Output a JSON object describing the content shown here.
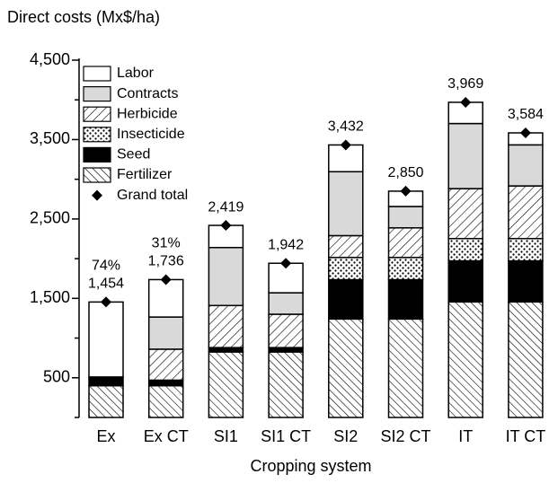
{
  "chart_data": {
    "type": "stacked_bar",
    "title": "Direct costs (Mx$/ha)",
    "x_label": "Cropping system",
    "categories": [
      "Ex",
      "Ex CT",
      "SI1",
      "SI1 CT",
      "SI2",
      "SI2 CT",
      "IT",
      "IT CT"
    ],
    "series": [
      {
        "name": "Fertilizer",
        "color": "#000000",
        "pattern": "hatch-back",
        "values": [
          400,
          400,
          825,
          825,
          1240,
          1240,
          1455,
          1455
        ]
      },
      {
        "name": "Seed",
        "color": "#000000",
        "pattern": "solid",
        "values": [
          110,
          70,
          55,
          55,
          495,
          495,
          517,
          517
        ]
      },
      {
        "name": "Insecticide",
        "color": "#000000",
        "pattern": "dots",
        "values": [
          0,
          0,
          0,
          0,
          280,
          280,
          281,
          281
        ]
      },
      {
        "name": "Herbicide",
        "color": "#000000",
        "pattern": "hatch-forward",
        "values": [
          0,
          390,
          530,
          420,
          275,
          373,
          629,
          663
        ]
      },
      {
        "name": "Contracts",
        "color": "#d9d9d9",
        "pattern": "solid",
        "values": [
          0,
          405,
          730,
          270,
          805,
          269,
          820,
          517
        ]
      },
      {
        "name": "Labor",
        "color": "#ffffff",
        "pattern": "solid",
        "values": [
          944,
          471,
          279,
          372,
          337,
          193,
          267,
          151
        ]
      }
    ],
    "totals": {
      "name": "Grand total",
      "color": "#000000",
      "values": [
        1454,
        1736,
        2419,
        1942,
        3432,
        2850,
        3969,
        3584
      ],
      "value_labels": [
        "1,454",
        "1,736",
        "2,419",
        "1,942",
        "3,432",
        "2,850",
        "3,969",
        "3,584"
      ]
    },
    "annotations": [
      {
        "category": 0,
        "text": "74%"
      },
      {
        "category": 1,
        "text": "31%"
      }
    ],
    "ylim": [
      0,
      4500
    ],
    "yticks": [
      {
        "value": 500,
        "label": "500"
      },
      {
        "value": 1500,
        "label": "1,500"
      },
      {
        "value": 2500,
        "label": "2,500"
      },
      {
        "value": 3500,
        "label": "3,500"
      },
      {
        "value": 4500,
        "label": "4,500"
      }
    ],
    "minor_yticks": [
      0,
      1000,
      2000,
      3000,
      4000
    ],
    "legend": "top-left"
  }
}
